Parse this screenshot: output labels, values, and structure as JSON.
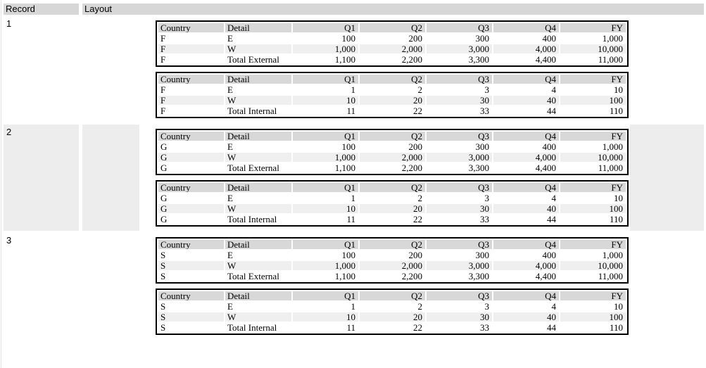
{
  "page": {
    "grid_columns": {
      "record_label": "Record",
      "layout_label": "Layout"
    }
  },
  "colors": {
    "header_bar_bg": "#d7d7d7",
    "table_header_bg": "#d8d8d8",
    "stripe_bg": "#efefef",
    "record_band_bg": "#ededed",
    "table_border": "#000000"
  },
  "table_columns": [
    "Country",
    "Detail",
    "Q1",
    "Q2",
    "Q3",
    "Q4",
    "FY"
  ],
  "records": [
    {
      "id": "1",
      "highlighted": false,
      "tables": [
        {
          "name": "external-summary-table",
          "rows": [
            [
              "F",
              "E",
              "100",
              "200",
              "300",
              "400",
              "1,000"
            ],
            [
              "F",
              "W",
              "1,000",
              "2,000",
              "3,000",
              "4,000",
              "10,000"
            ],
            [
              "F",
              "Total External",
              "1,100",
              "2,200",
              "3,300",
              "4,400",
              "11,000"
            ]
          ]
        },
        {
          "name": "internal-summary-table",
          "rows": [
            [
              "F",
              "E",
              "1",
              "2",
              "3",
              "4",
              "10"
            ],
            [
              "F",
              "W",
              "10",
              "20",
              "30",
              "40",
              "100"
            ],
            [
              "F",
              "Total Internal",
              "11",
              "22",
              "33",
              "44",
              "110"
            ]
          ]
        }
      ]
    },
    {
      "id": "2",
      "highlighted": true,
      "tables": [
        {
          "name": "external-summary-table",
          "rows": [
            [
              "G",
              "E",
              "100",
              "200",
              "300",
              "400",
              "1,000"
            ],
            [
              "G",
              "W",
              "1,000",
              "2,000",
              "3,000",
              "4,000",
              "10,000"
            ],
            [
              "G",
              "Total External",
              "1,100",
              "2,200",
              "3,300",
              "4,400",
              "11,000"
            ]
          ]
        },
        {
          "name": "internal-summary-table",
          "rows": [
            [
              "G",
              "E",
              "1",
              "2",
              "3",
              "4",
              "10"
            ],
            [
              "G",
              "W",
              "10",
              "20",
              "30",
              "40",
              "100"
            ],
            [
              "G",
              "Total Internal",
              "11",
              "22",
              "33",
              "44",
              "110"
            ]
          ]
        }
      ]
    },
    {
      "id": "3",
      "highlighted": false,
      "tables": [
        {
          "name": "external-summary-table",
          "rows": [
            [
              "S",
              "E",
              "100",
              "200",
              "300",
              "400",
              "1,000"
            ],
            [
              "S",
              "W",
              "1,000",
              "2,000",
              "3,000",
              "4,000",
              "10,000"
            ],
            [
              "S",
              "Total External",
              "1,100",
              "2,200",
              "3,300",
              "4,400",
              "11,000"
            ]
          ]
        },
        {
          "name": "internal-summary-table",
          "rows": [
            [
              "S",
              "E",
              "1",
              "2",
              "3",
              "4",
              "10"
            ],
            [
              "S",
              "W",
              "10",
              "20",
              "30",
              "40",
              "100"
            ],
            [
              "S",
              "Total Internal",
              "11",
              "22",
              "33",
              "44",
              "110"
            ]
          ]
        }
      ]
    }
  ]
}
